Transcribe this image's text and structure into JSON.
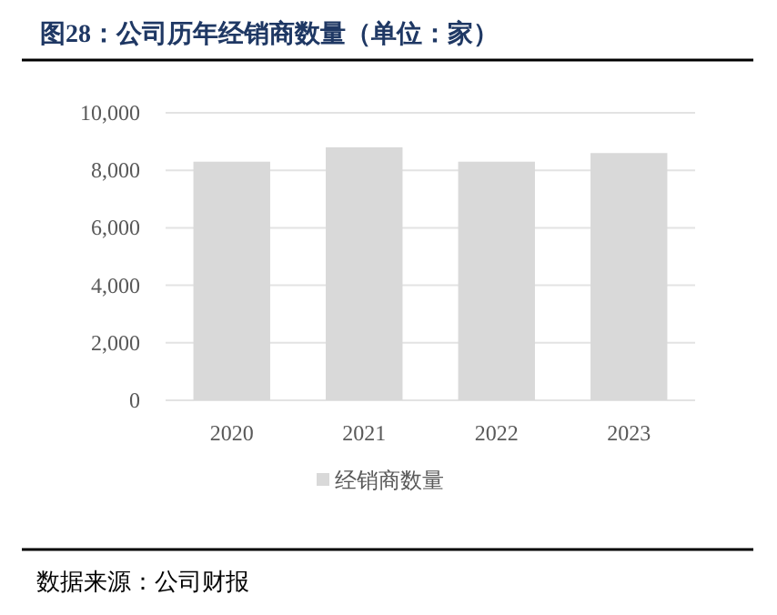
{
  "chart_data": {
    "type": "bar",
    "title": "图28：公司历年经销商数量（单位：家）",
    "categories": [
      "2020",
      "2021",
      "2022",
      "2023"
    ],
    "series": [
      {
        "name": "经销商数量",
        "color": "#d9d9d9",
        "values": [
          8300,
          8800,
          8300,
          8600
        ]
      }
    ],
    "ylim": [
      0,
      10000
    ],
    "yticks": [
      {
        "value": 0,
        "label": "0"
      },
      {
        "value": 2000,
        "label": "2,000"
      },
      {
        "value": 4000,
        "label": "4,000"
      },
      {
        "value": 6000,
        "label": "6,000"
      },
      {
        "value": 8000,
        "label": "8,000"
      },
      {
        "value": 10000,
        "label": "10,000"
      }
    ],
    "grid": "y",
    "legend": "bottom",
    "annotations": [
      "数据来源：公司财报"
    ]
  }
}
